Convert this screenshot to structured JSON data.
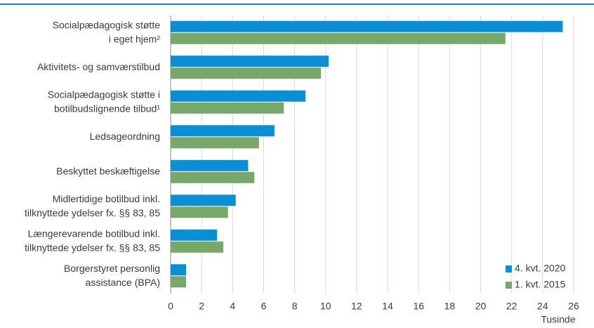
{
  "chart_data": {
    "type": "barh",
    "categories": [
      [
        "Socialpædagogisk støtte",
        "i eget hjem²"
      ],
      [
        "Aktivitets- og samværstilbud"
      ],
      [
        "Socialpædagogisk støtte i",
        "botilbudslignende tilbud¹"
      ],
      [
        "Ledsageordning"
      ],
      [
        "Beskyttet beskæftigelse"
      ],
      [
        "Midlertidige botilbud inkl.",
        "tilknyttede ydelser fx. §§ 83, 85"
      ],
      [
        "Længerevarende botilbud inkl.",
        "tilknyttede ydelser fx. §§ 83, 85"
      ],
      [
        "Borgerstyret personlig",
        "assistance (BPA)"
      ]
    ],
    "series": [
      {
        "name": "4. kvt. 2020",
        "color": "#0a8fd6",
        "values": [
          25.3,
          10.2,
          8.7,
          6.7,
          5.0,
          4.2,
          3.0,
          1.0
        ]
      },
      {
        "name": "1. kvt. 2015",
        "color": "#77a86a",
        "values": [
          21.6,
          9.7,
          7.3,
          5.7,
          5.4,
          3.7,
          3.4,
          1.0
        ]
      }
    ],
    "xlabel": "Tusinde",
    "xlim": [
      0,
      26
    ],
    "xticks": [
      0,
      2,
      4,
      6,
      8,
      10,
      12,
      14,
      16,
      18,
      20,
      22,
      24,
      26
    ],
    "grid": true,
    "legend": "lower right"
  }
}
